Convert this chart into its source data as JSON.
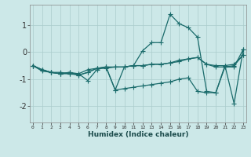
{
  "xlabel": "Humidex (Indice chaleur)",
  "background_color": "#cce8e8",
  "grid_color": "#aacccc",
  "line_color": "#1a6b6b",
  "x_values": [
    0,
    1,
    2,
    3,
    4,
    5,
    6,
    7,
    8,
    9,
    10,
    11,
    12,
    13,
    14,
    15,
    16,
    17,
    18,
    19,
    20,
    21,
    22,
    23
  ],
  "series": [
    [
      -0.5,
      -0.7,
      -0.75,
      -0.8,
      -0.75,
      -0.8,
      -1.05,
      -0.65,
      -0.55,
      -1.4,
      -0.55,
      -0.5,
      0.05,
      0.35,
      0.35,
      1.4,
      1.05,
      0.9,
      0.55,
      -1.45,
      -1.5,
      -0.55,
      -0.55,
      0.1
    ],
    [
      -0.5,
      -0.65,
      -0.75,
      -0.75,
      -0.8,
      -0.8,
      -0.65,
      -0.6,
      -0.55,
      -0.55,
      -0.55,
      -0.5,
      -0.5,
      -0.45,
      -0.45,
      -0.4,
      -0.3,
      -0.25,
      -0.2,
      -0.45,
      -0.5,
      -0.5,
      -0.45,
      -0.1
    ],
    [
      -0.5,
      -0.65,
      -0.75,
      -0.8,
      -0.75,
      -0.85,
      -0.75,
      -0.6,
      -0.6,
      -0.55,
      -0.55,
      -0.5,
      -0.5,
      -0.45,
      -0.45,
      -0.4,
      -0.35,
      -0.25,
      -0.2,
      -0.45,
      -0.55,
      -0.55,
      -0.5,
      -0.1
    ],
    [
      -0.5,
      -0.65,
      -0.75,
      -0.8,
      -0.8,
      -0.85,
      -0.75,
      -0.6,
      -0.55,
      -1.4,
      -1.35,
      -1.3,
      -1.25,
      -1.2,
      -1.15,
      -1.1,
      -1.0,
      -0.95,
      -1.45,
      -1.5,
      -1.5,
      -0.5,
      -1.9,
      0.1
    ]
  ],
  "ylim": [
    -2.6,
    1.75
  ],
  "xlim": [
    -0.3,
    23.3
  ],
  "yticks": [
    -2,
    -1,
    0,
    1
  ],
  "xticks": [
    0,
    1,
    2,
    3,
    4,
    5,
    6,
    7,
    8,
    9,
    10,
    11,
    12,
    13,
    14,
    15,
    16,
    17,
    18,
    19,
    20,
    21,
    22,
    23
  ],
  "marker": "+",
  "markersize": 4,
  "linewidth": 0.9
}
